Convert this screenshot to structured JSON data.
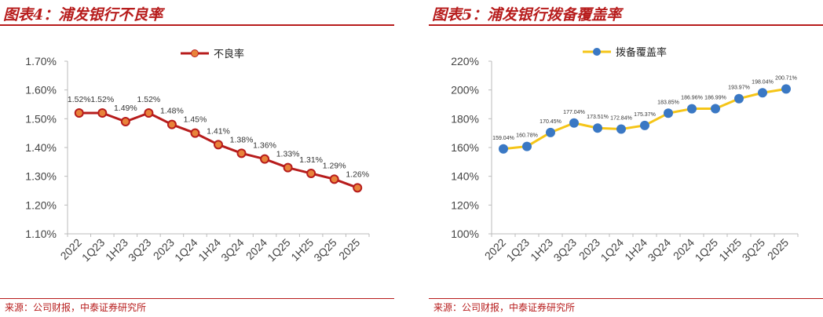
{
  "left": {
    "title": "图表4：浦发银行不良率",
    "source": "来源：公司财报，中泰证券研究所"
  },
  "right": {
    "title": "图表5：浦发银行拨备覆盖率",
    "source": "来源：公司财报，中泰证券研究所"
  },
  "chart_data": [
    {
      "type": "line",
      "title": "图表4：浦发银行不良率",
      "categories": [
        "2022",
        "1Q23",
        "1H23",
        "3Q23",
        "2023",
        "1Q24",
        "1H24",
        "3Q24",
        "2024",
        "1Q25",
        "1H25",
        "3Q25",
        "2025"
      ],
      "series": [
        {
          "name": "不良率",
          "values": [
            1.52,
            1.52,
            1.49,
            1.52,
            1.48,
            1.45,
            1.41,
            1.38,
            1.36,
            1.33,
            1.31,
            1.29,
            1.26
          ],
          "labels": [
            "1.52%",
            "1.52%",
            "1.49%",
            "1.52%",
            "1.48%",
            "1.45%",
            "1.41%",
            "1.38%",
            "1.36%",
            "1.33%",
            "1.31%",
            "1.29%",
            "1.26%"
          ]
        }
      ],
      "ylim": [
        1.1,
        1.7
      ],
      "yticks": [
        "1.70%",
        "1.60%",
        "1.50%",
        "1.40%",
        "1.30%",
        "1.20%",
        "1.10%"
      ],
      "legend_position": "top-center",
      "grid": false,
      "colors": {
        "line": "#b71c1c",
        "marker": "#e8833a"
      }
    },
    {
      "type": "line",
      "title": "图表5：浦发银行拨备覆盖率",
      "categories": [
        "2022",
        "1Q23",
        "1H23",
        "3Q23",
        "2023",
        "1Q24",
        "1H24",
        "3Q24",
        "2024",
        "1Q25",
        "1H25",
        "3Q25",
        "2025"
      ],
      "series": [
        {
          "name": "拨备覆盖率",
          "values": [
            159.04,
            160.78,
            170.45,
            177.04,
            173.51,
            172.84,
            175.37,
            183.85,
            186.96,
            186.99,
            193.97,
            198.04,
            200.71
          ],
          "labels": [
            "159.04%",
            "160.78%",
            "170.45%",
            "177.04%",
            "173.51%",
            "172.84%",
            "175.37%",
            "183.85%",
            "186.96%",
            "186.99%",
            "193.97%",
            "198.04%",
            "200.71%"
          ]
        }
      ],
      "ylim": [
        100,
        220
      ],
      "yticks": [
        "220%",
        "200%",
        "180%",
        "160%",
        "140%",
        "120%",
        "100%"
      ],
      "legend_position": "top-center",
      "grid": false,
      "colors": {
        "line": "#f5c518",
        "marker": "#3a78c4"
      }
    }
  ]
}
